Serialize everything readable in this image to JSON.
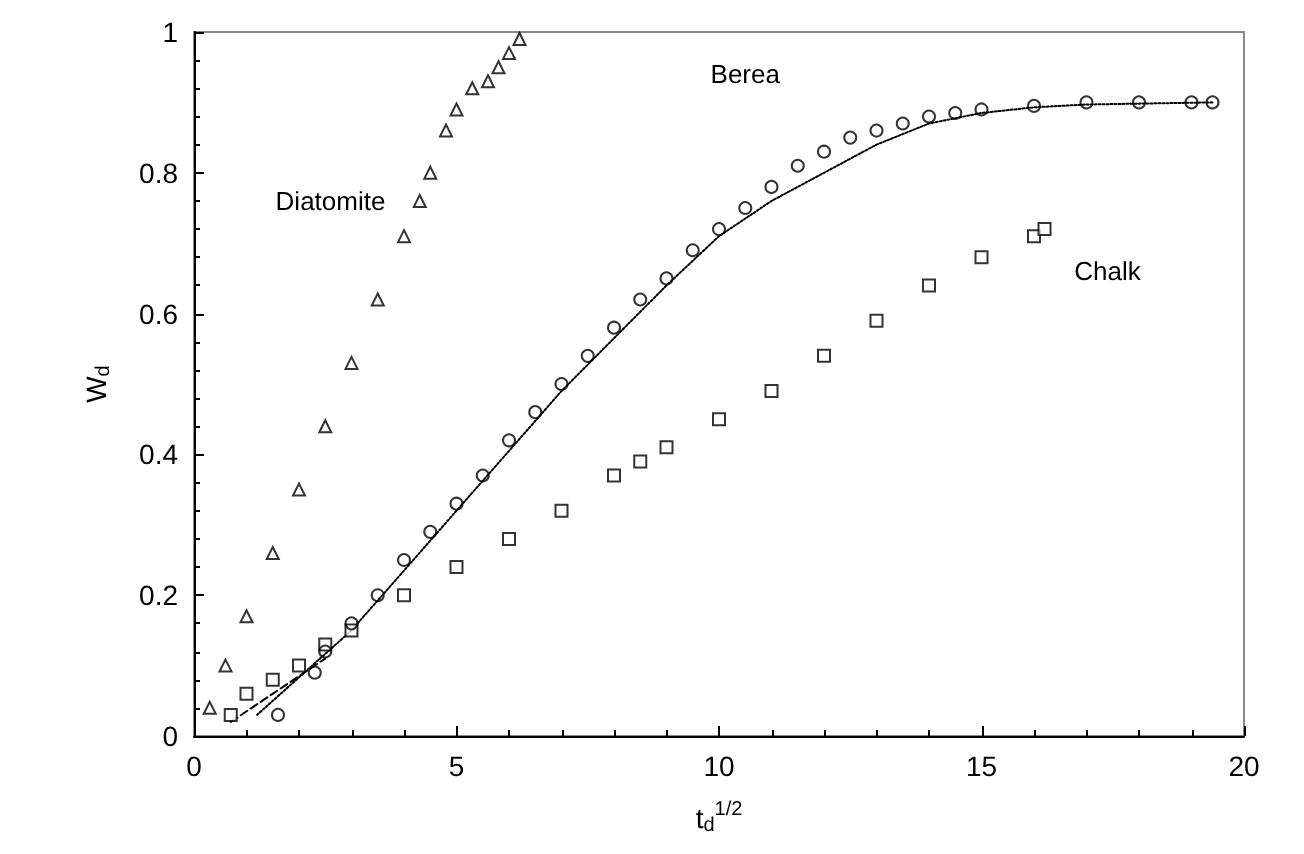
{
  "chart_data": {
    "type": "scatter",
    "xlabel": "t$_{d}$$^{1/2}$",
    "ylabel": "W$_{d}$",
    "xlim": [
      0,
      20
    ],
    "xticks": [
      0,
      5,
      10,
      15,
      20
    ],
    "ylim": [
      0,
      1
    ],
    "yticks": [
      0,
      0.2,
      0.4,
      0.6,
      0.8,
      1
    ],
    "grid": false,
    "legend": false,
    "series": [
      {
        "name": "Diatomite",
        "color": "#000000",
        "marker": "triangle",
        "x": [
          0.3,
          0.6,
          1,
          1.5,
          2,
          2.5,
          3,
          3.5,
          4,
          4.3,
          4.5,
          4.8,
          5,
          5.3,
          5.6,
          5.8,
          6,
          6.2
        ],
        "values": [
          0.04,
          0.1,
          0.17,
          0.26,
          0.35,
          0.44,
          0.53,
          0.62,
          0.71,
          0.76,
          0.8,
          0.86,
          0.89,
          0.92,
          0.93,
          0.95,
          0.97,
          0.99
        ]
      },
      {
        "name": "Berea",
        "color": "#000000",
        "marker": "circle",
        "x": [
          1.6,
          2.3,
          2.5,
          3,
          3.5,
          4,
          4.5,
          5,
          5.5,
          6,
          6.5,
          7,
          7.5,
          8,
          8.5,
          9,
          9.5,
          10,
          10.5,
          11,
          11.5,
          12,
          12.5,
          13,
          13.5,
          14,
          14.5,
          15,
          16,
          17,
          18,
          19,
          19.4
        ],
        "values": [
          0.03,
          0.09,
          0.12,
          0.16,
          0.2,
          0.25,
          0.29,
          0.33,
          0.37,
          0.42,
          0.46,
          0.5,
          0.54,
          0.58,
          0.62,
          0.65,
          0.69,
          0.72,
          0.75,
          0.78,
          0.81,
          0.83,
          0.85,
          0.86,
          0.87,
          0.88,
          0.885,
          0.89,
          0.895,
          0.9,
          0.9,
          0.9,
          0.9
        ]
      },
      {
        "name": "Chalk",
        "color": "#000000",
        "marker": "square",
        "x": [
          0.7,
          1,
          1.5,
          2,
          2.5,
          3,
          4,
          5,
          6,
          7,
          8,
          8.5,
          9,
          10,
          11,
          12,
          13,
          14,
          15,
          16,
          16.2
        ],
        "values": [
          0.03,
          0.06,
          0.08,
          0.1,
          0.13,
          0.15,
          0.2,
          0.24,
          0.28,
          0.32,
          0.37,
          0.39,
          0.41,
          0.45,
          0.49,
          0.54,
          0.59,
          0.64,
          0.68,
          0.71,
          0.72
        ]
      },
      {
        "type": "line",
        "color": "#000000",
        "line_style": "dotted",
        "marker": "none",
        "x": [
          1.2,
          3,
          5,
          7,
          9,
          10,
          11,
          12,
          13,
          14,
          15,
          16,
          17,
          19.4
        ],
        "values": [
          0.03,
          0.15,
          0.32,
          0.49,
          0.64,
          0.71,
          0.76,
          0.8,
          0.84,
          0.87,
          0.885,
          0.893,
          0.897,
          0.9
        ]
      },
      {
        "type": "line",
        "color": "#000000",
        "line_style": "dashed",
        "marker": "none",
        "x": [
          0.7,
          2.5
        ],
        "values": [
          0.02,
          0.11
        ]
      }
    ]
  }
}
